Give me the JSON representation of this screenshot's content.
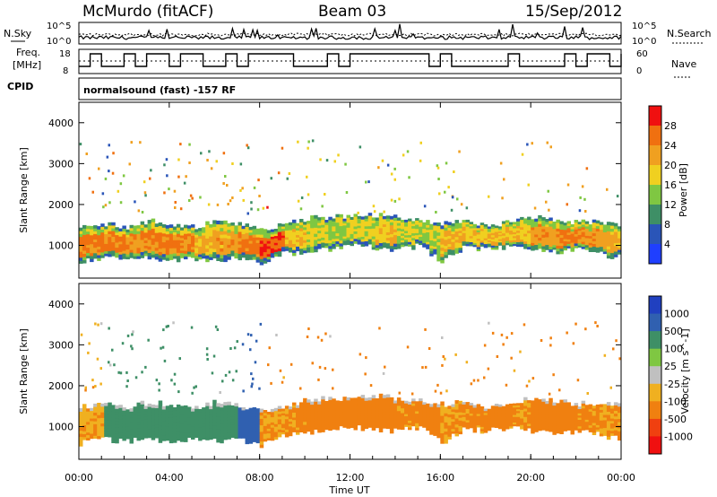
{
  "header": {
    "station": "McMurdo (fitACF)",
    "beam": "Beam 03",
    "date": "15/Sep/2012"
  },
  "noise_panel": {
    "left_label": "N.Sky",
    "right_label": "N.Search",
    "left_ticks": [
      "10^5",
      "10^0"
    ],
    "right_ticks": [
      "10^5",
      "10^0"
    ]
  },
  "freq_panel": {
    "left_label_line1": "Freq.",
    "left_label_line2": "[MHz]",
    "right_label": "Nave",
    "left_ticks": [
      "18",
      "8"
    ],
    "right_ticks": [
      "60",
      "0"
    ]
  },
  "cpid": {
    "label": "CPID",
    "program": "normalsound (fast) -157 RF"
  },
  "chart_data": [
    {
      "type": "heatmap",
      "panel": "power",
      "ylabel": "Slant Range [km]",
      "xlabel": "",
      "ylim": [
        200,
        4500
      ],
      "y_ticks": [
        1000,
        2000,
        3000,
        4000
      ],
      "xlim": [
        0,
        24
      ],
      "colorbar_label": "Power [dB]",
      "colorbar_ticks": [
        "4",
        "8",
        "12",
        "16",
        "20",
        "24",
        "28"
      ],
      "colorbar_colors": [
        "#1f3fff",
        "#2a55b8",
        "#3e8f66",
        "#7fc742",
        "#f0d020",
        "#f0a020",
        "#f07010",
        "#f01010"
      ],
      "echo_band": {
        "lower_range_km": [
          600,
          700,
          650,
          700,
          650,
          700,
          650,
          700,
          550,
          800,
          850,
          900,
          1000,
          950,
          900,
          1000,
          600,
          950,
          900,
          1000,
          900,
          850,
          900,
          800,
          700
        ],
        "upper_range_km": [
          1500,
          1550,
          1450,
          1600,
          1550,
          1450,
          1600,
          1500,
          1400,
          1500,
          1650,
          1700,
          1700,
          1750,
          1700,
          1650,
          1550,
          1600,
          1500,
          1550,
          1700,
          1650,
          1550,
          1600,
          1500
        ],
        "core_power_db": [
          28,
          28,
          26,
          28,
          27,
          24,
          25,
          28,
          30,
          22,
          20,
          18,
          20,
          22,
          20,
          18,
          24,
          22,
          24,
          22,
          26,
          28,
          26,
          24,
          22
        ]
      }
    },
    {
      "type": "heatmap",
      "panel": "velocity",
      "ylabel": "Slant Range [km]",
      "xlabel": "Time UT",
      "ylim": [
        200,
        4500
      ],
      "y_ticks": [
        1000,
        2000,
        3000,
        4000
      ],
      "xlim": [
        0,
        24
      ],
      "x_ticks": [
        "00:00",
        "04:00",
        "08:00",
        "12:00",
        "16:00",
        "20:00",
        "00:00"
      ],
      "colorbar_label": "Velocity [m s^-1]",
      "colorbar_ticks": [
        "1000",
        "500",
        "100",
        "25",
        "-25",
        "-100",
        "-500",
        "-1000"
      ],
      "colorbar_colors": [
        "#2040c0",
        "#3060b0",
        "#3e8f66",
        "#7fc742",
        "#c0c0c0",
        "#f0b020",
        "#f08010",
        "#f04010",
        "#f01010"
      ],
      "echo_band": {
        "hour_velocity_ms": [
          -80,
          200,
          200,
          200,
          200,
          200,
          200,
          600,
          -100,
          -120,
          -140,
          -150,
          -150,
          -140,
          -130,
          -150,
          -100,
          -130,
          -150,
          -120,
          -140,
          -150,
          -130,
          -100,
          -80
        ]
      }
    }
  ]
}
